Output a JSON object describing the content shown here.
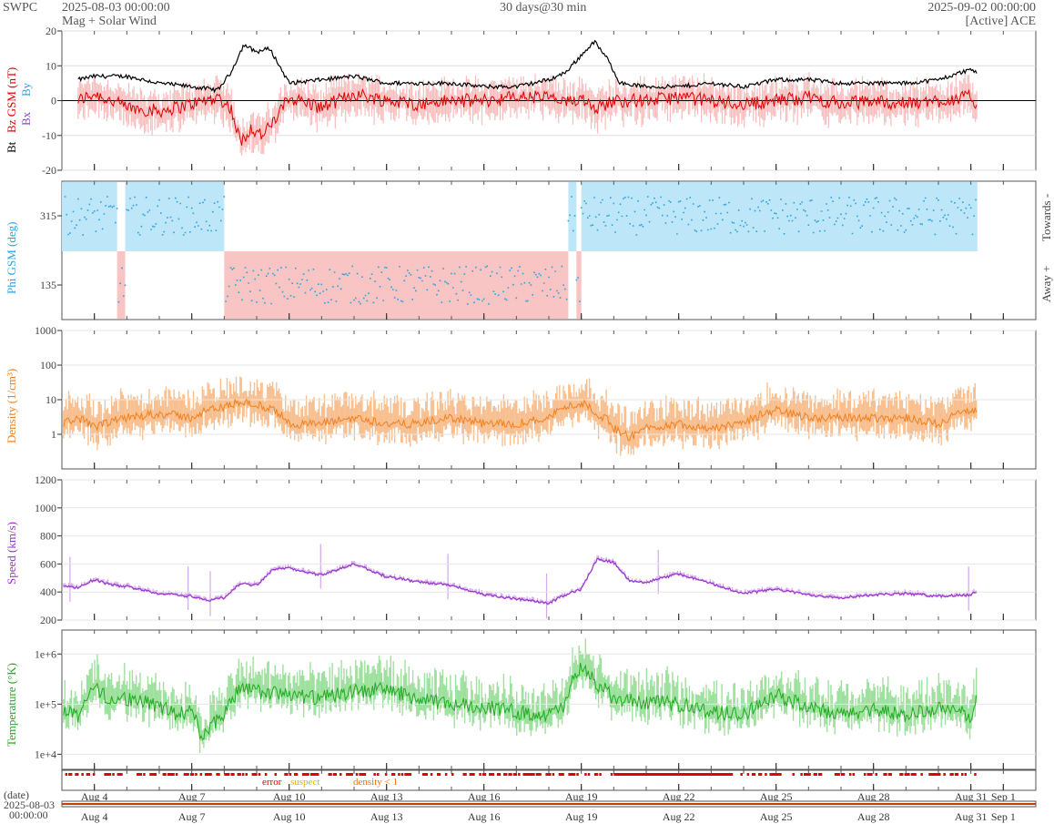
{
  "header": {
    "org": "SWPC",
    "start": "2025-08-03 00:00:00",
    "product": "Mag + Solar Wind",
    "span": "30 days@30 min",
    "end": "2025-09-02 00:00:00",
    "source": "[Active] ACE"
  },
  "colors": {
    "bt": "#000000",
    "bz": "#e00000",
    "bx": "#8844cc",
    "by": "#2aa4e0",
    "phi_towards": "#bde6f8",
    "phi_away": "#f8c4c4",
    "phi_pts": "#2aa4e0",
    "density": "#f08020",
    "speed": "#9933cc",
    "temperature": "#22aa22",
    "flag_error": "#e00000",
    "flag_suspect": "#f0b000",
    "flag_density": "#f07000"
  },
  "x_axis": {
    "start_day": 3,
    "end_day": 33,
    "tick_labels": [
      "Aug 4",
      "Aug 7",
      "Aug 10",
      "Aug 13",
      "Aug 16",
      "Aug 19",
      "Aug 22",
      "Aug 25",
      "Aug 28",
      "Aug 31",
      "Sep 1"
    ],
    "tick_days": [
      4,
      7,
      10,
      13,
      16,
      19,
      22,
      25,
      28,
      31,
      32
    ],
    "date_label": "(date)",
    "date_start": "2025-08-03",
    "time_start": "00:00:00"
  },
  "flags": {
    "error_label": "error",
    "suspect_label": "suspect",
    "density_label": "density < 1"
  },
  "chart_data": [
    {
      "type": "line",
      "name": "mag",
      "ylabel_parts": [
        "Bt",
        "Bz GSM (nT)",
        "Bx",
        "By"
      ],
      "ylim": [
        -20,
        20
      ],
      "yticks": [
        -20,
        -10,
        0,
        10,
        20
      ],
      "series": [
        {
          "name": "Bt",
          "x": [
            3.5,
            4,
            5,
            6,
            7,
            7.8,
            8.2,
            8.6,
            9,
            9.4,
            10,
            11,
            12,
            13,
            14,
            15,
            16,
            17,
            18,
            18.5,
            19,
            19.4,
            19.8,
            20.2,
            21,
            22,
            23,
            24,
            25,
            26,
            27,
            28,
            29,
            30,
            31,
            31.2
          ],
          "y": [
            6,
            7,
            7,
            5,
            4,
            3,
            8,
            16,
            14,
            15,
            5,
            6,
            7,
            5,
            5,
            5,
            4,
            4,
            6,
            8,
            13,
            17,
            12,
            5,
            4,
            4,
            5,
            4,
            6,
            6,
            5,
            5,
            5,
            6,
            9,
            8
          ]
        },
        {
          "name": "Bz GSM",
          "x": [
            3.5,
            4,
            5,
            6,
            7,
            7.8,
            8.2,
            8.5,
            8.8,
            9.2,
            9.6,
            10,
            11,
            12,
            13,
            14,
            15,
            16,
            17,
            18,
            18.5,
            19,
            19.5,
            20,
            21,
            22,
            23,
            24,
            25,
            26,
            27,
            28,
            29,
            30,
            31,
            31.2
          ],
          "y": [
            0,
            2,
            -2,
            -3,
            -1,
            1,
            -2,
            -12,
            -8,
            -10,
            -5,
            1,
            -2,
            2,
            0,
            -1,
            0,
            0,
            1,
            1,
            -1,
            1,
            -2,
            0,
            0,
            1,
            0,
            -1,
            0,
            1,
            -1,
            0,
            -1,
            0,
            1,
            -1
          ]
        }
      ]
    },
    {
      "type": "scatter",
      "name": "phi",
      "ylabel": "Phi GSM (deg)",
      "yticks": [
        135,
        315
      ],
      "side_labels": [
        "Towards -",
        "Away +"
      ],
      "sectors": [
        {
          "x0": 3.0,
          "x1": 4.7,
          "sector": "towards"
        },
        {
          "x0": 4.7,
          "x1": 4.95,
          "sector": "away"
        },
        {
          "x0": 4.95,
          "x1": 8.0,
          "sector": "towards"
        },
        {
          "x0": 8.0,
          "x1": 18.6,
          "sector": "away"
        },
        {
          "x0": 18.6,
          "x1": 18.85,
          "sector": "towards"
        },
        {
          "x0": 18.85,
          "x1": 19.0,
          "sector": "away"
        },
        {
          "x0": 19.0,
          "x1": 31.2,
          "sector": "towards"
        }
      ]
    },
    {
      "type": "line",
      "name": "density",
      "ylabel": "Density (1/cm³)",
      "yscale": "log",
      "ylim": [
        0.1,
        1000
      ],
      "yticks": [
        1,
        10,
        100,
        1000
      ],
      "x": [
        3,
        3.5,
        4,
        5,
        6,
        7,
        7.5,
        8,
        8.5,
        9,
        9.5,
        10,
        11,
        12,
        13,
        14,
        15,
        16,
        17,
        18,
        18.5,
        19,
        19.5,
        20,
        20.5,
        21,
        22,
        23,
        24,
        25,
        26,
        27,
        28,
        29,
        30,
        31,
        31.2
      ],
      "y": [
        2,
        3,
        1.5,
        3,
        4,
        3,
        5,
        6,
        9,
        7,
        5,
        2,
        2,
        3,
        2,
        2,
        3,
        2,
        2,
        3,
        6,
        8,
        4,
        1.5,
        0.8,
        1.5,
        2,
        1.5,
        2,
        5,
        3,
        3,
        3,
        3,
        2,
        5,
        5
      ]
    },
    {
      "type": "line",
      "name": "speed",
      "ylabel": "Speed (km/s)",
      "ylim": [
        200,
        1200
      ],
      "yticks": [
        200,
        400,
        600,
        800,
        1000,
        1200
      ],
      "x": [
        3,
        3.5,
        4,
        4.5,
        5,
        6,
        7,
        7.5,
        8,
        8.5,
        9,
        9.5,
        10,
        11,
        12,
        13,
        14,
        15,
        16,
        17,
        18,
        18.5,
        19,
        19.5,
        20,
        20.5,
        21,
        22,
        23,
        24,
        25,
        26,
        27,
        28,
        29,
        30,
        31,
        31.2
      ],
      "y": [
        440,
        430,
        490,
        450,
        440,
        390,
        370,
        340,
        360,
        460,
        450,
        560,
        570,
        520,
        600,
        510,
        470,
        450,
        380,
        350,
        320,
        380,
        420,
        640,
        610,
        480,
        470,
        530,
        460,
        390,
        420,
        380,
        360,
        380,
        390,
        370,
        380,
        410
      ]
    },
    {
      "type": "line",
      "name": "temperature",
      "ylabel": "Temperature (°K)",
      "yscale": "log",
      "ylim": [
        5000,
        3000000
      ],
      "yticks": [
        10000,
        100000,
        1000000
      ],
      "ytick_labels": [
        "1e+4",
        "1e+5",
        "1e+6"
      ],
      "x": [
        3,
        3.5,
        4,
        4.5,
        5,
        6,
        6.5,
        7,
        7.3,
        7.6,
        8,
        8.5,
        9,
        10,
        11,
        12,
        13,
        14,
        15,
        16,
        17,
        18,
        18.5,
        19,
        19.5,
        20,
        21,
        22,
        23,
        24,
        25,
        26,
        27,
        28,
        29,
        30,
        31,
        31.2
      ],
      "y": [
        80000,
        60000,
        200000,
        120000,
        130000,
        90000,
        60000,
        80000,
        15000,
        40000,
        60000,
        200000,
        180000,
        150000,
        130000,
        180000,
        200000,
        120000,
        100000,
        90000,
        70000,
        60000,
        90000,
        500000,
        250000,
        120000,
        110000,
        100000,
        70000,
        60000,
        150000,
        80000,
        60000,
        80000,
        60000,
        80000,
        60000,
        130000
      ]
    }
  ]
}
